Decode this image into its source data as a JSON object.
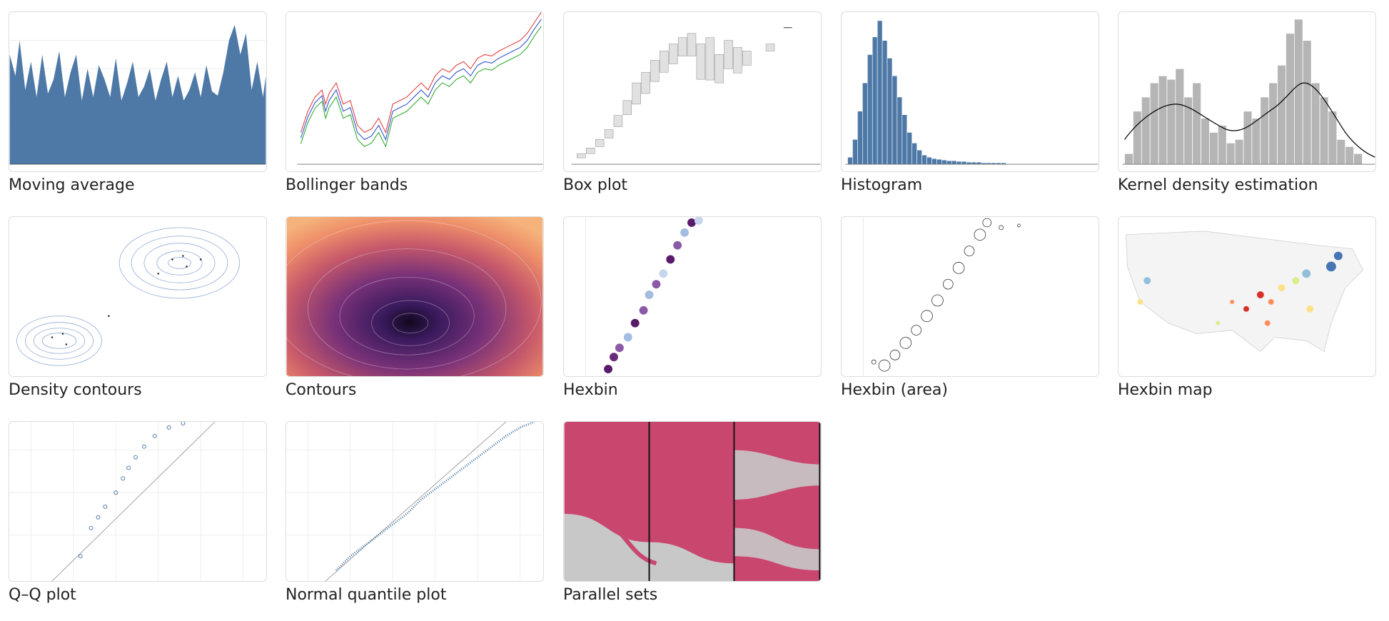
{
  "gallery": {
    "items": [
      {
        "title": "Moving average"
      },
      {
        "title": "Bollinger bands"
      },
      {
        "title": "Box plot"
      },
      {
        "title": "Histogram"
      },
      {
        "title": "Kernel density estimation"
      },
      {
        "title": "Density contours"
      },
      {
        "title": "Contours"
      },
      {
        "title": "Hexbin"
      },
      {
        "title": "Hexbin (area)"
      },
      {
        "title": "Hexbin map"
      },
      {
        "title": "Q–Q plot"
      },
      {
        "title": "Normal quantile plot"
      },
      {
        "title": "Parallel sets"
      }
    ]
  },
  "colors": {
    "steelblue": "#4e79a7",
    "gray_bar": "#b5b5b5",
    "parallel_pink": "#c9466f",
    "contour_dark": "#3a1a5e",
    "contour_light": "#f5b27a"
  }
}
